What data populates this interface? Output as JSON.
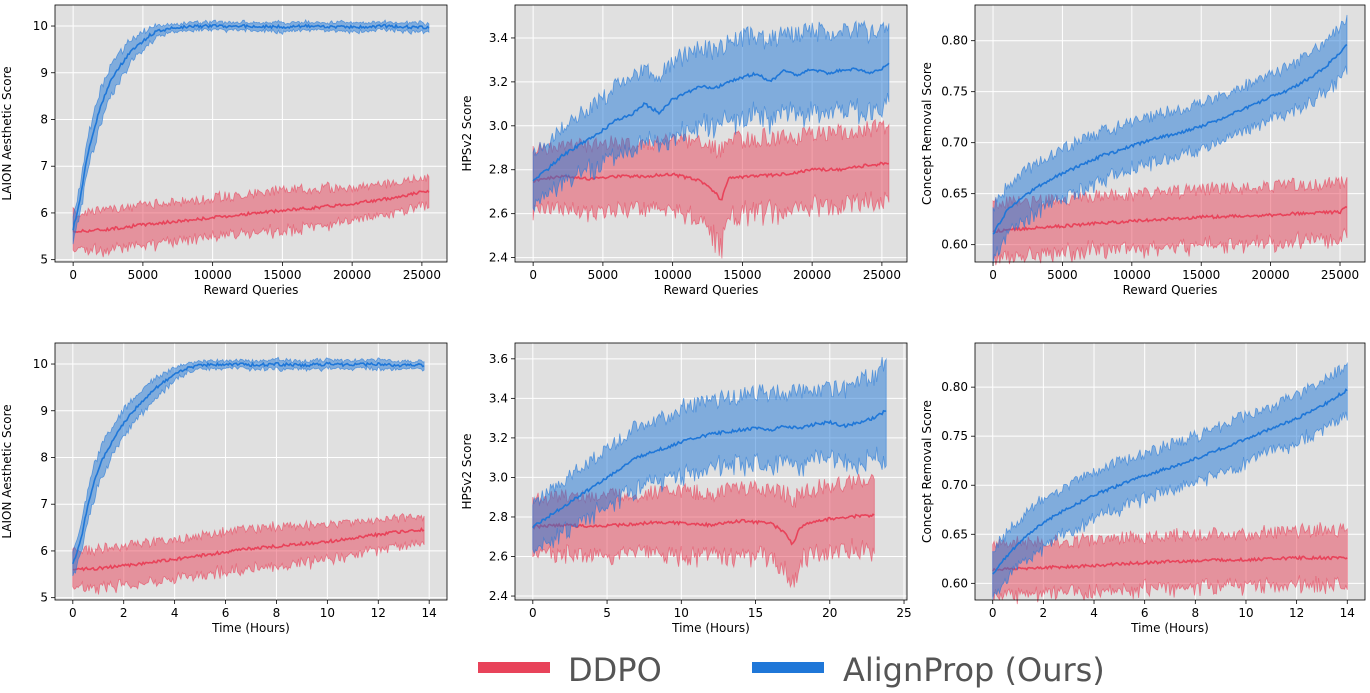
{
  "legend": {
    "items": [
      {
        "label": "DDPO",
        "color": "#e8435a"
      },
      {
        "label": "AlignProp (Ours)",
        "color": "#1f77d8"
      }
    ]
  },
  "chart_data": [
    {
      "type": "line",
      "xlabel": "Reward Queries",
      "ylabel": "LAION Aesthetic Score",
      "xlim": [
        -1300,
        26800
      ],
      "ylim": [
        4.95,
        10.45
      ],
      "xticks": [
        0,
        5000,
        10000,
        15000,
        20000,
        25000
      ],
      "yticks": [
        5,
        6,
        7,
        8,
        9,
        10
      ],
      "grid": true,
      "series": [
        {
          "name": "DDPO",
          "x": [
            0,
            2500,
            5000,
            7500,
            10000,
            12500,
            15000,
            17500,
            20000,
            22500,
            25000,
            25500
          ],
          "values": [
            5.6,
            5.65,
            5.75,
            5.82,
            5.9,
            5.98,
            6.05,
            6.12,
            6.2,
            6.3,
            6.45,
            6.45
          ],
          "band": [
            0.4,
            0.42,
            0.42,
            0.42,
            0.42,
            0.42,
            0.42,
            0.42,
            0.35,
            0.32,
            0.3,
            0.3
          ]
        },
        {
          "name": "AlignProp (Ours)",
          "x": [
            0,
            500,
            1000,
            1500,
            2000,
            2500,
            3000,
            3500,
            4000,
            4500,
            5000,
            5500,
            6000,
            7000,
            8000,
            10000,
            12500,
            15000,
            17500,
            20000,
            22500,
            25000,
            25500
          ],
          "values": [
            5.65,
            6.3,
            7.2,
            7.8,
            8.3,
            8.7,
            9.0,
            9.2,
            9.4,
            9.55,
            9.68,
            9.8,
            9.88,
            9.95,
            9.98,
            10.0,
            10.0,
            9.98,
            10.0,
            9.97,
            10.0,
            9.97,
            9.98
          ],
          "band": [
            0.25,
            0.3,
            0.35,
            0.35,
            0.35,
            0.3,
            0.3,
            0.28,
            0.25,
            0.22,
            0.2,
            0.15,
            0.12,
            0.08,
            0.08,
            0.08,
            0.08,
            0.1,
            0.08,
            0.1,
            0.08,
            0.1,
            0.08
          ]
        }
      ]
    },
    {
      "type": "line",
      "xlabel": "Reward Queries",
      "ylabel": "HPSv2 Score",
      "xlim": [
        -1300,
        26800
      ],
      "ylim": [
        2.38,
        3.55
      ],
      "xticks": [
        0,
        5000,
        10000,
        15000,
        20000,
        25000
      ],
      "yticks": [
        2.4,
        2.6,
        2.8,
        3.0,
        3.2,
        3.4
      ],
      "grid": true,
      "series": [
        {
          "name": "DDPO",
          "x": [
            0,
            2000,
            4000,
            6000,
            8000,
            10000,
            12000,
            13000,
            13500,
            14000,
            16000,
            18000,
            20000,
            22000,
            24000,
            25500
          ],
          "values": [
            2.75,
            2.77,
            2.76,
            2.77,
            2.77,
            2.78,
            2.75,
            2.7,
            2.66,
            2.76,
            2.77,
            2.78,
            2.8,
            2.8,
            2.82,
            2.83
          ],
          "band": [
            0.14,
            0.15,
            0.15,
            0.15,
            0.15,
            0.16,
            0.17,
            0.2,
            0.22,
            0.17,
            0.17,
            0.17,
            0.17,
            0.17,
            0.17,
            0.16
          ]
        },
        {
          "name": "AlignProp (Ours)",
          "x": [
            0,
            1000,
            2000,
            3000,
            4000,
            5000,
            6000,
            7000,
            8000,
            9000,
            10000,
            11000,
            12000,
            13000,
            14000,
            15000,
            16000,
            17000,
            18000,
            19000,
            20000,
            21000,
            22000,
            23000,
            24000,
            25000,
            25500
          ],
          "values": [
            2.75,
            2.8,
            2.86,
            2.9,
            2.94,
            2.98,
            3.03,
            3.05,
            3.1,
            3.06,
            3.12,
            3.15,
            3.18,
            3.17,
            3.2,
            3.22,
            3.24,
            3.2,
            3.25,
            3.23,
            3.26,
            3.24,
            3.25,
            3.26,
            3.24,
            3.26,
            3.29
          ],
          "band": [
            0.12,
            0.12,
            0.13,
            0.14,
            0.14,
            0.15,
            0.15,
            0.16,
            0.16,
            0.16,
            0.17,
            0.17,
            0.17,
            0.17,
            0.18,
            0.18,
            0.18,
            0.18,
            0.18,
            0.18,
            0.18,
            0.18,
            0.18,
            0.18,
            0.18,
            0.17,
            0.16
          ]
        }
      ]
    },
    {
      "type": "line",
      "xlabel": "Reward Queries",
      "ylabel": "Concept Removal Score",
      "xlim": [
        -1300,
        26800
      ],
      "ylim": [
        0.583,
        0.835
      ],
      "xticks": [
        0,
        5000,
        10000,
        15000,
        20000,
        25000
      ],
      "yticks": [
        0.6,
        0.65,
        0.7,
        0.75,
        0.8
      ],
      "grid": true,
      "series": [
        {
          "name": "DDPO",
          "x": [
            0,
            2500,
            5000,
            7500,
            10000,
            12500,
            15000,
            17500,
            20000,
            22500,
            25000,
            25500
          ],
          "values": [
            0.613,
            0.616,
            0.618,
            0.621,
            0.623,
            0.625,
            0.627,
            0.628,
            0.629,
            0.631,
            0.632,
            0.637
          ],
          "band": [
            0.027,
            0.027,
            0.026,
            0.026,
            0.026,
            0.026,
            0.027,
            0.027,
            0.028,
            0.028,
            0.028,
            0.027
          ]
        },
        {
          "name": "AlignProp (Ours)",
          "x": [
            0,
            1000,
            2000,
            3000,
            4000,
            5000,
            6000,
            7000,
            8000,
            9000,
            10000,
            11000,
            12000,
            13000,
            14000,
            15000,
            16000,
            17000,
            18000,
            19000,
            20000,
            21000,
            22000,
            23000,
            24000,
            25000,
            25500
          ],
          "values": [
            0.61,
            0.633,
            0.645,
            0.655,
            0.663,
            0.67,
            0.676,
            0.682,
            0.688,
            0.692,
            0.697,
            0.701,
            0.705,
            0.708,
            0.712,
            0.716,
            0.721,
            0.727,
            0.733,
            0.738,
            0.745,
            0.75,
            0.757,
            0.765,
            0.775,
            0.788,
            0.797
          ],
          "band": [
            0.025,
            0.024,
            0.024,
            0.024,
            0.024,
            0.024,
            0.024,
            0.024,
            0.024,
            0.023,
            0.023,
            0.023,
            0.023,
            0.023,
            0.022,
            0.022,
            0.022,
            0.022,
            0.022,
            0.022,
            0.022,
            0.022,
            0.023,
            0.024,
            0.025,
            0.026,
            0.026
          ]
        }
      ]
    },
    {
      "type": "line",
      "xlabel": "Time (Hours)",
      "ylabel": "LAION Aesthetic Score",
      "xlim": [
        -0.7,
        14.7
      ],
      "ylim": [
        4.95,
        10.45
      ],
      "xticks": [
        0,
        2,
        4,
        6,
        8,
        10,
        12,
        14
      ],
      "yticks": [
        5,
        6,
        7,
        8,
        9,
        10
      ],
      "grid": true,
      "series": [
        {
          "name": "DDPO",
          "x": [
            0,
            1,
            2,
            3,
            4,
            5,
            6,
            7,
            8,
            9,
            10,
            11,
            12,
            13,
            13.8
          ],
          "values": [
            5.6,
            5.63,
            5.68,
            5.75,
            5.82,
            5.9,
            5.98,
            6.05,
            6.1,
            6.15,
            6.2,
            6.28,
            6.35,
            6.42,
            6.45
          ],
          "band": [
            0.4,
            0.42,
            0.42,
            0.42,
            0.42,
            0.42,
            0.42,
            0.42,
            0.42,
            0.4,
            0.38,
            0.35,
            0.32,
            0.3,
            0.28
          ]
        },
        {
          "name": "AlignProp (Ours)",
          "x": [
            0,
            0.3,
            0.6,
            0.9,
            1.2,
            1.5,
            1.8,
            2.1,
            2.4,
            2.7,
            3.0,
            3.3,
            3.6,
            3.9,
            4.2,
            4.5,
            5,
            6,
            7,
            8,
            9,
            10,
            11,
            12,
            13,
            13.8
          ],
          "values": [
            5.7,
            6.2,
            7.0,
            7.6,
            8.0,
            8.3,
            8.6,
            8.8,
            9.0,
            9.2,
            9.35,
            9.5,
            9.62,
            9.75,
            9.85,
            9.92,
            9.97,
            10.0,
            9.98,
            10.0,
            9.97,
            10.0,
            9.98,
            10.0,
            9.97,
            9.98
          ],
          "band": [
            0.25,
            0.3,
            0.35,
            0.35,
            0.35,
            0.32,
            0.3,
            0.28,
            0.26,
            0.24,
            0.22,
            0.2,
            0.18,
            0.15,
            0.12,
            0.1,
            0.08,
            0.08,
            0.08,
            0.1,
            0.08,
            0.1,
            0.08,
            0.1,
            0.08,
            0.08
          ]
        }
      ]
    },
    {
      "type": "line",
      "xlabel": "Time (Hours)",
      "ylabel": "HPSv2 Score",
      "xlim": [
        -1.2,
        25.2
      ],
      "ylim": [
        2.38,
        3.68
      ],
      "xticks": [
        0,
        5,
        10,
        15,
        20,
        25
      ],
      "yticks": [
        2.4,
        2.6,
        2.8,
        3.0,
        3.2,
        3.4,
        3.6
      ],
      "grid": true,
      "series": [
        {
          "name": "DDPO",
          "x": [
            0,
            2,
            4,
            6,
            8,
            10,
            12,
            14,
            16,
            17,
            17.5,
            18,
            19,
            21,
            23
          ],
          "values": [
            2.75,
            2.76,
            2.75,
            2.76,
            2.77,
            2.77,
            2.76,
            2.78,
            2.77,
            2.72,
            2.66,
            2.75,
            2.78,
            2.8,
            2.81
          ],
          "band": [
            0.14,
            0.15,
            0.15,
            0.15,
            0.15,
            0.16,
            0.16,
            0.17,
            0.17,
            0.2,
            0.22,
            0.17,
            0.17,
            0.17,
            0.17
          ]
        },
        {
          "name": "AlignProp (Ours)",
          "x": [
            0,
            1,
            2,
            3,
            4,
            5,
            6,
            7,
            8,
            9,
            10,
            11,
            12,
            13,
            14,
            15,
            16,
            17,
            18,
            19,
            20,
            21,
            22,
            23,
            23.8
          ],
          "values": [
            2.75,
            2.8,
            2.85,
            2.9,
            2.95,
            3.0,
            3.05,
            3.1,
            3.13,
            3.15,
            3.18,
            3.2,
            3.22,
            3.23,
            3.24,
            3.25,
            3.24,
            3.26,
            3.25,
            3.27,
            3.28,
            3.26,
            3.28,
            3.3,
            3.34
          ],
          "band": [
            0.12,
            0.12,
            0.13,
            0.14,
            0.14,
            0.15,
            0.15,
            0.16,
            0.16,
            0.16,
            0.17,
            0.17,
            0.17,
            0.17,
            0.18,
            0.18,
            0.18,
            0.18,
            0.18,
            0.18,
            0.18,
            0.19,
            0.2,
            0.22,
            0.24
          ]
        }
      ]
    },
    {
      "type": "line",
      "xlabel": "Time (Hours)",
      "ylabel": "Concept Removal Score",
      "xlim": [
        -0.7,
        14.7
      ],
      "ylim": [
        0.583,
        0.845
      ],
      "xticks": [
        0,
        2,
        4,
        6,
        8,
        10,
        12,
        14
      ],
      "yticks": [
        0.6,
        0.65,
        0.7,
        0.75,
        0.8
      ],
      "grid": true,
      "series": [
        {
          "name": "DDPO",
          "x": [
            0,
            1,
            2,
            3,
            4,
            5,
            6,
            7,
            8,
            9,
            10,
            11,
            12,
            13,
            14
          ],
          "values": [
            0.614,
            0.615,
            0.616,
            0.617,
            0.618,
            0.62,
            0.621,
            0.622,
            0.623,
            0.624,
            0.624,
            0.625,
            0.626,
            0.626,
            0.626
          ],
          "band": [
            0.027,
            0.027,
            0.027,
            0.026,
            0.026,
            0.026,
            0.026,
            0.027,
            0.027,
            0.027,
            0.027,
            0.027,
            0.028,
            0.028,
            0.028
          ]
        },
        {
          "name": "AlignProp (Ours)",
          "x": [
            0,
            0.5,
            1,
            1.5,
            2,
            3,
            4,
            5,
            6,
            7,
            8,
            9,
            10,
            11,
            12,
            12.5,
            13,
            13.5,
            14
          ],
          "values": [
            0.61,
            0.626,
            0.64,
            0.652,
            0.662,
            0.677,
            0.69,
            0.7,
            0.71,
            0.718,
            0.727,
            0.737,
            0.747,
            0.758,
            0.768,
            0.774,
            0.781,
            0.789,
            0.797
          ],
          "band": [
            0.025,
            0.024,
            0.024,
            0.024,
            0.024,
            0.024,
            0.024,
            0.023,
            0.023,
            0.023,
            0.023,
            0.023,
            0.023,
            0.023,
            0.024,
            0.024,
            0.025,
            0.026,
            0.026
          ]
        }
      ]
    }
  ]
}
